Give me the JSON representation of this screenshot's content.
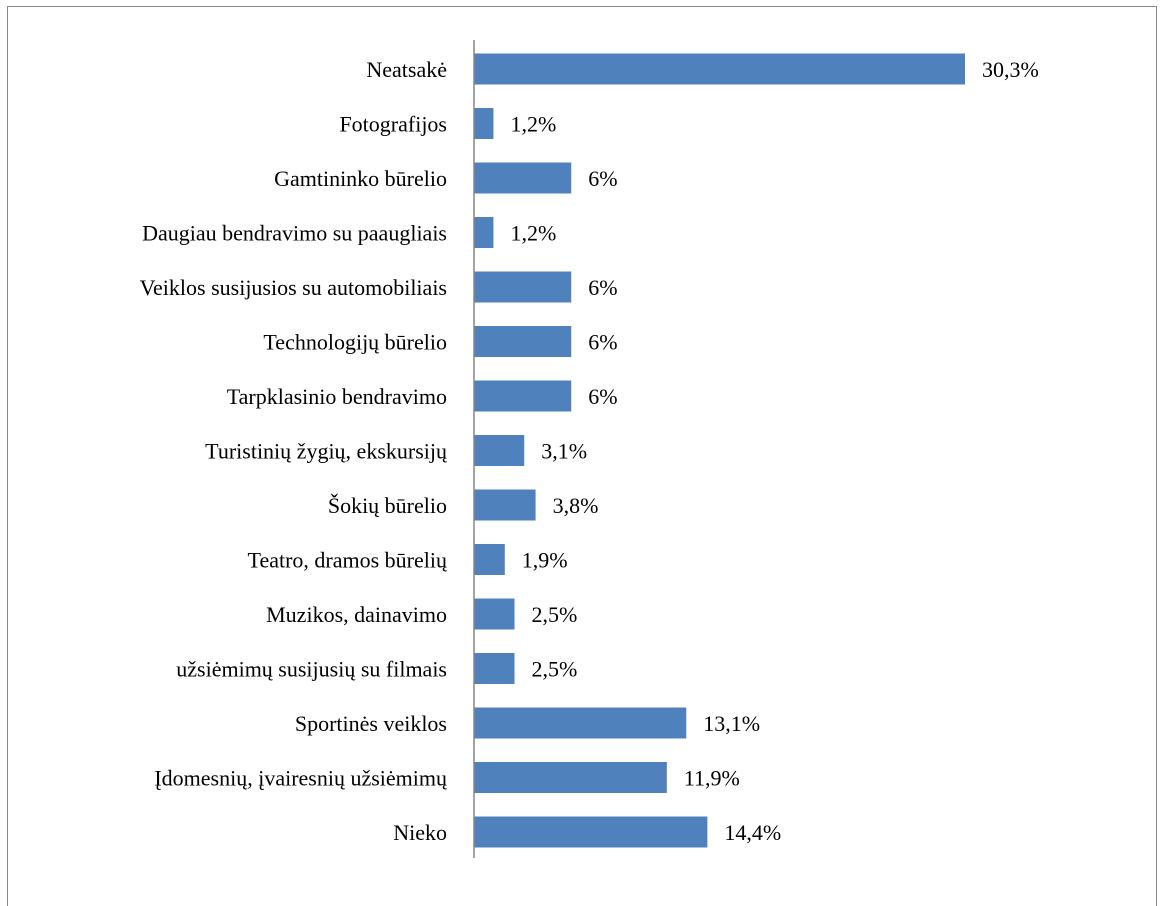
{
  "chart_data": {
    "type": "bar",
    "orientation": "horizontal",
    "categories": [
      "Neatsakė",
      "Fotografijos",
      "Gamtininko būrelio",
      "Daugiau bendravimo su paaugliais",
      "Veiklos susijusios su automobiliais",
      "Technologijų būrelio",
      "Tarpklasinio bendravimo",
      "Turistinių žygių, ekskursijų",
      "Šokių būrelio",
      "Teatro, dramos būrelių",
      "Muzikos, dainavimo",
      "užsiėmimų susijusių su filmais",
      "Sportinės veiklos",
      "Įdomesnių, įvairesnių užsiėmimų",
      "Nieko"
    ],
    "values": [
      30.3,
      1.2,
      6,
      1.2,
      6,
      6,
      6,
      3.1,
      3.8,
      1.9,
      2.5,
      2.5,
      13.1,
      11.9,
      14.4
    ],
    "data_labels": [
      "30,3%",
      "1,2%",
      "6%",
      "1,2%",
      "6%",
      "6%",
      "6%",
      "3,1%",
      "3,8%",
      "1,9%",
      "2,5%",
      "2,5%",
      "13,1%",
      "11,9%",
      "14,4%"
    ],
    "xlim": [
      0,
      30.3
    ],
    "bar_color": "#4f81bd",
    "axis_color": "#868686",
    "grid": false,
    "legend": "none"
  }
}
